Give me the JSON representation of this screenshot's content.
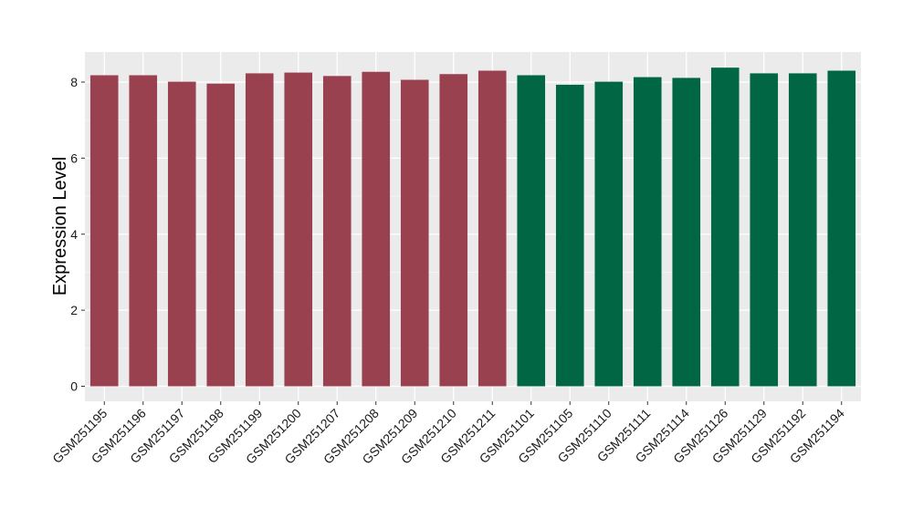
{
  "chart_data": {
    "type": "bar",
    "title": "",
    "xlabel": "",
    "ylabel": "Expression Level",
    "ylim": [
      0,
      8.75
    ],
    "yticks": [
      0,
      2,
      4,
      6,
      8
    ],
    "grid": true,
    "background_color": "#ebebeb",
    "categories": [
      "GSM251195",
      "GSM251196",
      "GSM251197",
      "GSM251198",
      "GSM251199",
      "GSM251200",
      "GSM251207",
      "GSM251208",
      "GSM251209",
      "GSM251210",
      "GSM251211",
      "GSM251101",
      "GSM251105",
      "GSM251110",
      "GSM251111",
      "GSM251114",
      "GSM251126",
      "GSM251129",
      "GSM251192",
      "GSM251194"
    ],
    "values": [
      8.18,
      8.18,
      8.01,
      7.96,
      8.23,
      8.25,
      8.16,
      8.27,
      8.06,
      8.21,
      8.3,
      8.18,
      7.93,
      8.01,
      8.13,
      8.11,
      8.38,
      8.23,
      8.23,
      8.3
    ],
    "bar_colors": [
      "#9a4150",
      "#9a4150",
      "#9a4150",
      "#9a4150",
      "#9a4150",
      "#9a4150",
      "#9a4150",
      "#9a4150",
      "#9a4150",
      "#9a4150",
      "#9a4150",
      "#006644",
      "#006644",
      "#006644",
      "#006644",
      "#006644",
      "#006644",
      "#006644",
      "#006644",
      "#006644"
    ]
  }
}
